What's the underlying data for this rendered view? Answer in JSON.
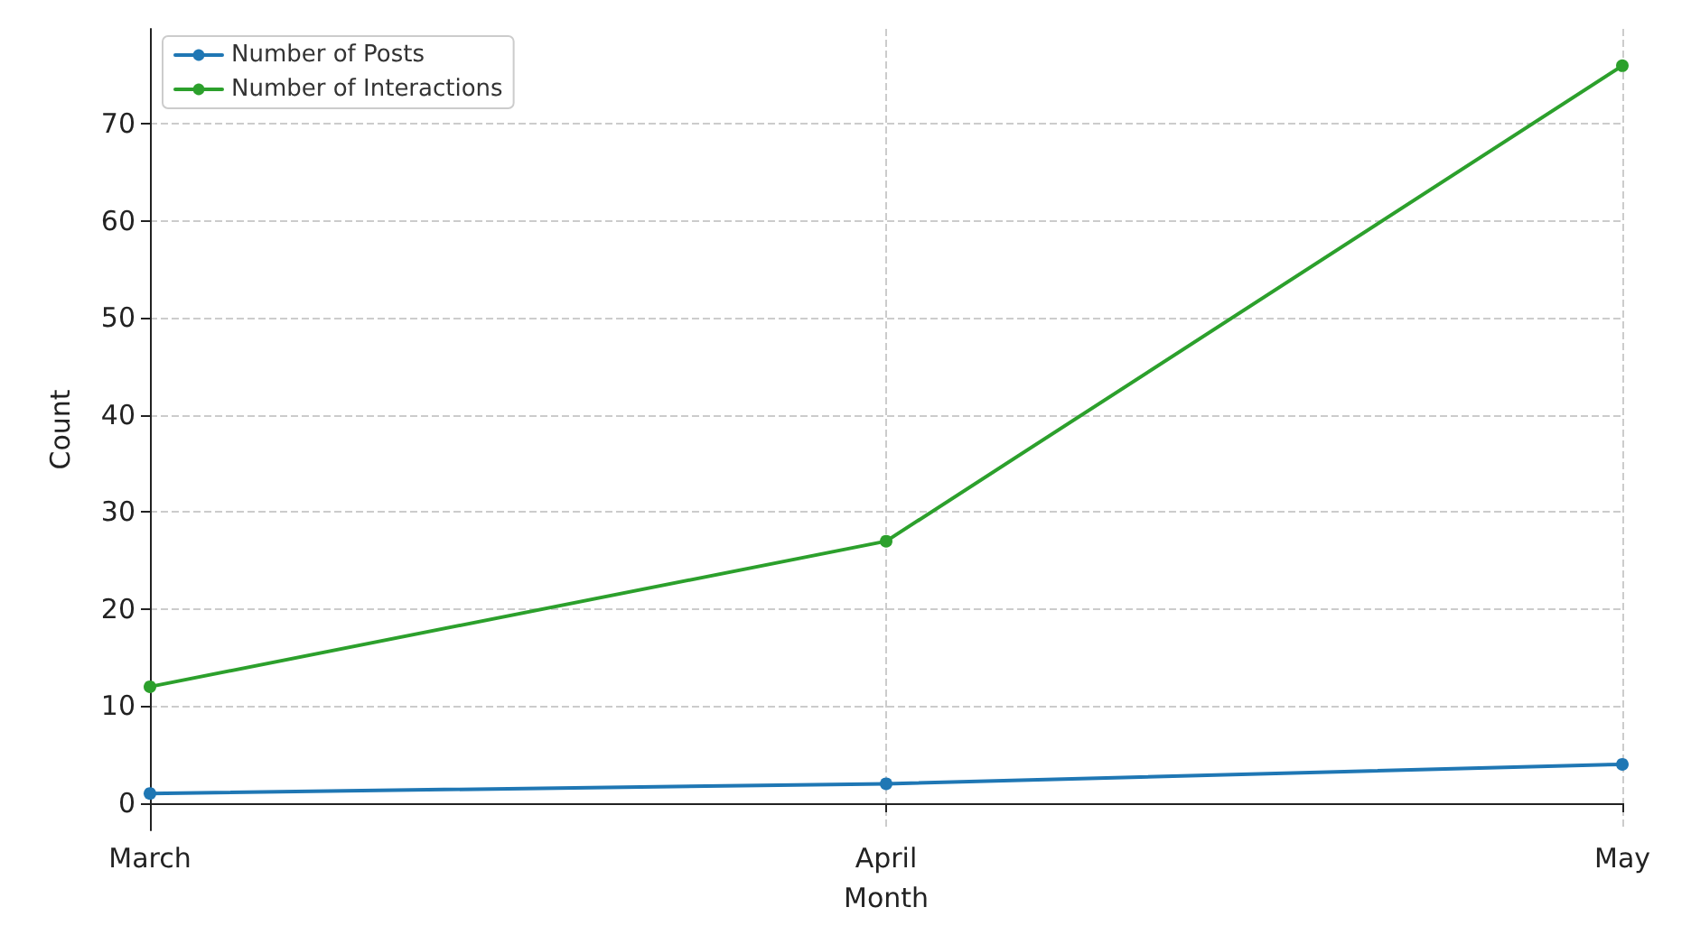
{
  "chart_data": {
    "type": "line",
    "xlabel": "Month",
    "ylabel": "Count",
    "categories": [
      "March",
      "April",
      "May"
    ],
    "series": [
      {
        "name": "Number of Posts",
        "color": "#1f77b4",
        "values": [
          1,
          2,
          4
        ]
      },
      {
        "name": "Number of Interactions",
        "color": "#2ca02c",
        "values": [
          12,
          27,
          76
        ]
      }
    ],
    "ylim": [
      -2.8,
      79.8
    ],
    "yticks": [
      0,
      10,
      20,
      30,
      40,
      50,
      60,
      70
    ],
    "grid": true,
    "legend": "top left",
    "marker": "circle",
    "line_style": "solid"
  }
}
